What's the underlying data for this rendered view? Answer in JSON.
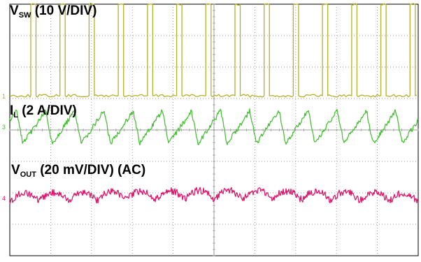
{
  "chart_data": {
    "type": "line",
    "instrument": "oscilloscope",
    "grid": true,
    "grid_divisions": {
      "x": 10,
      "y": 8
    },
    "channels": [
      {
        "id": "ch-vsw",
        "label_main": "V",
        "label_sub": "SW",
        "label_suffix": " (10 V/DIV)",
        "scale": "10 V/DIV",
        "color": "#b5b02a",
        "marker": "1",
        "waveform": "pulse",
        "pulse_count": 14,
        "low_div": 0.0,
        "high_div": 2.9,
        "duty_cycle": 0.18
      },
      {
        "id": "ch-il",
        "label_main": "I",
        "label_sub": "L",
        "label_suffix": " (2 A/DIV)",
        "scale": "2 A/DIV",
        "color": "#4cbf3a",
        "marker": "3",
        "waveform": "triangle",
        "cycle_count": 14,
        "min_div": -0.55,
        "max_div": 0.5
      },
      {
        "id": "ch-vout",
        "label_main": "V",
        "label_sub": "OUT",
        "label_suffix": " (20 mV/DIV) (AC)",
        "scale": "20 mV/DIV",
        "coupling": "AC",
        "color": "#e0196e",
        "marker": "4",
        "waveform": "ripple",
        "ripple_cycles": 14,
        "ripple_pp_div": 0.35
      }
    ]
  }
}
